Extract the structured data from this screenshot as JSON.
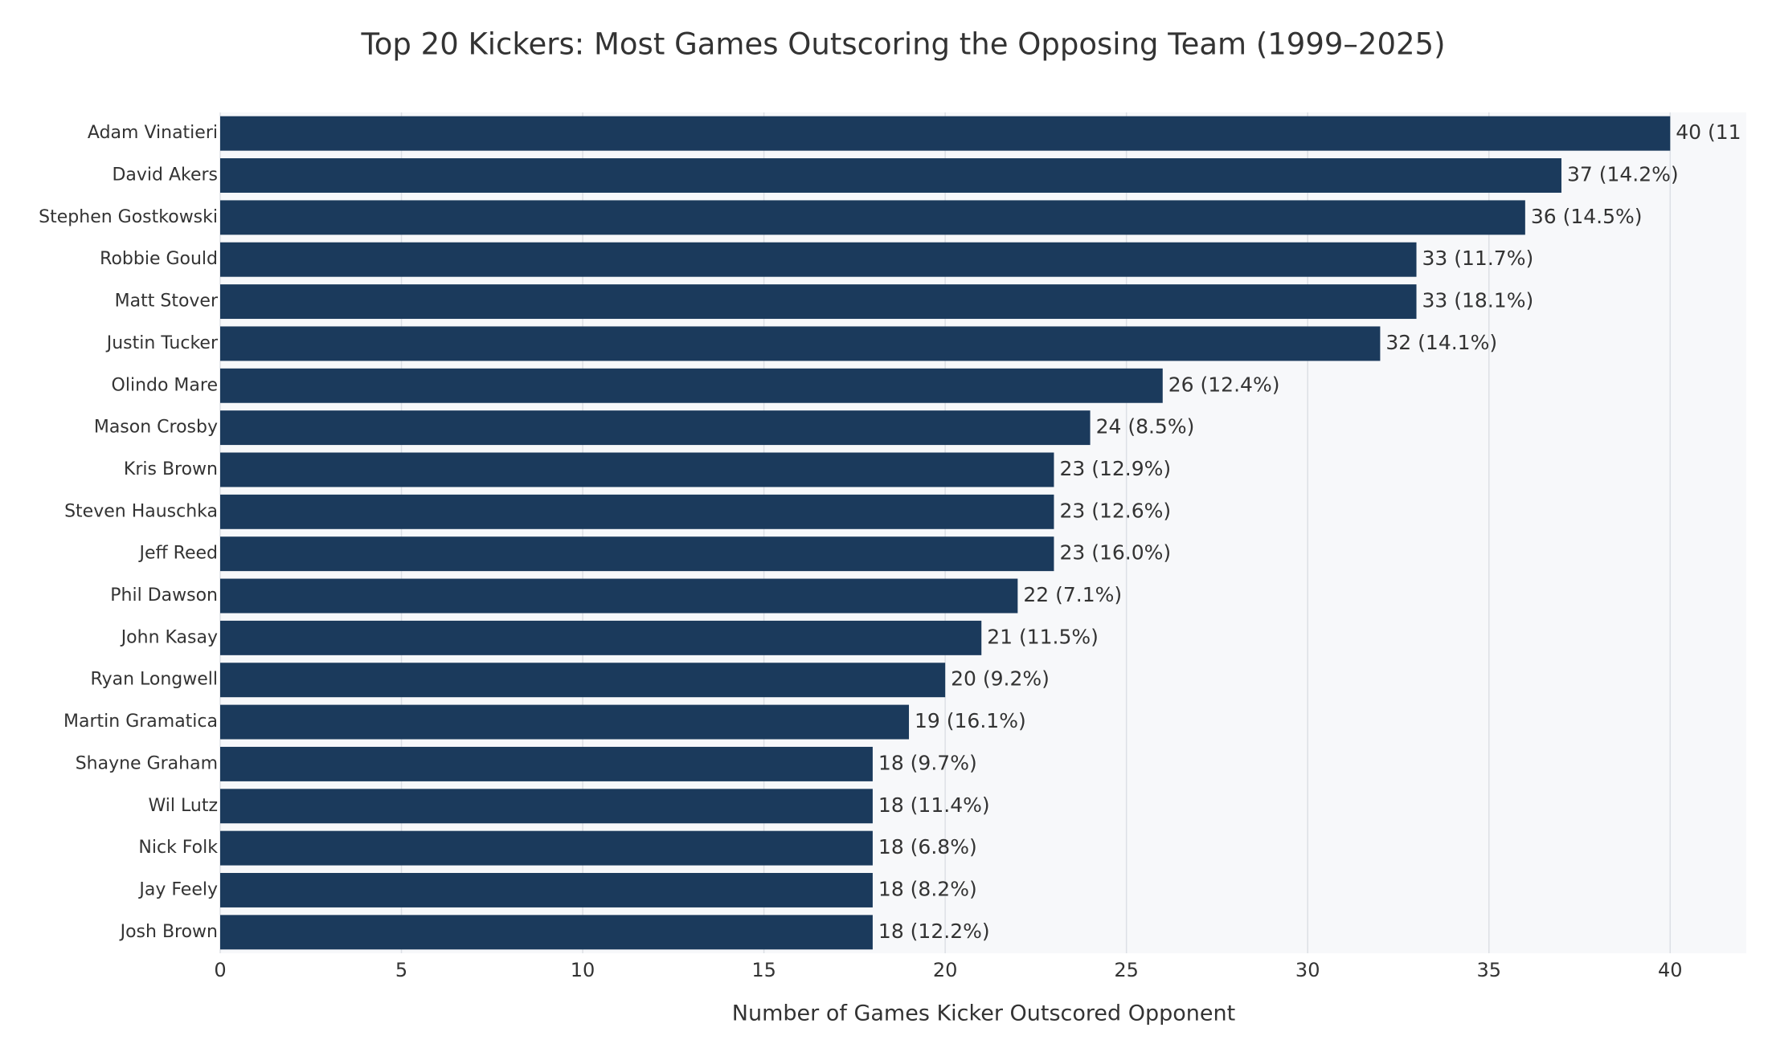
{
  "chart_data": {
    "type": "bar",
    "orientation": "horizontal",
    "title": "Top 20 Kickers: Most Games Outscoring the Opposing Team (1999–2025)",
    "x_label": "Number of Games Kicker Outscored Opponent",
    "categories": [
      "Adam Vinatieri",
      "David Akers",
      "Stephen Gostkowski",
      "Robbie Gould",
      "Matt Stover",
      "Justin Tucker",
      "Olindo Mare",
      "Mason Crosby",
      "Kris Brown",
      "Steven Hauschka",
      "Jeff Reed",
      "Phil Dawson",
      "John Kasay",
      "Ryan Longwell",
      "Martin Gramatica",
      "Shayne Graham",
      "Wil Lutz",
      "Nick Folk",
      "Jay Feely",
      "Josh Brown"
    ],
    "values": [
      40,
      37,
      36,
      33,
      33,
      32,
      26,
      24,
      23,
      23,
      23,
      22,
      21,
      20,
      19,
      18,
      18,
      18,
      18,
      18
    ],
    "value_labels": [
      "40  (11",
      "37  (14.2%)",
      "36  (14.5%)",
      "33  (11.7%)",
      "33  (18.1%)",
      "32  (14.1%)",
      "26  (12.4%)",
      "24  (8.5%)",
      "23  (12.9%)",
      "23  (12.6%)",
      "23  (16.0%)",
      "22  (7.1%)",
      "21  (11.5%)",
      "20  (9.2%)",
      "19  (16.1%)",
      "18  (9.7%)",
      "18  (11.4%)",
      "18  (6.8%)",
      "18  (8.2%)",
      "18  (12.2%)"
    ],
    "color": "#1b3a5c",
    "xlim": [
      0,
      42.1
    ],
    "xticks": [
      0,
      5,
      10,
      15,
      20,
      25,
      30,
      35,
      40
    ],
    "grid": true
  }
}
